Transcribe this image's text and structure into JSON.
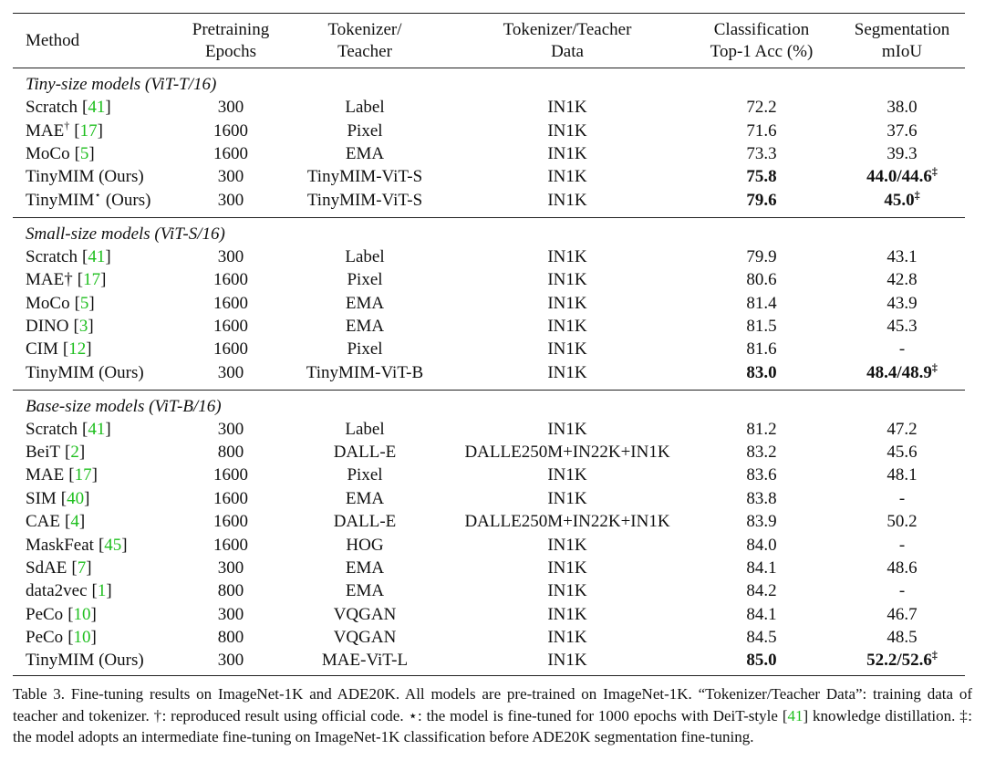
{
  "table": {
    "header": [
      [
        "Method"
      ],
      [
        "Pretraining",
        "Epochs"
      ],
      [
        "Tokenizer/",
        "Teacher"
      ],
      [
        "Tokenizer/Teacher",
        "Data"
      ],
      [
        "Classification",
        "Top-1 Acc (%)"
      ],
      [
        "Segmentation",
        "mIoU"
      ]
    ],
    "groups": [
      {
        "title": "Tiny-size models (ViT-T/16)",
        "rows": [
          {
            "method": "Scratch",
            "ref": "41",
            "epochs": "300",
            "tokenizer": "Label",
            "data": "IN1K",
            "acc": "72.2",
            "miou": "38.0"
          },
          {
            "method": "MAE",
            "method_sup": "†",
            "ref": "17",
            "epochs": "1600",
            "tokenizer": "Pixel",
            "data": "IN1K",
            "acc": "71.6",
            "miou": "37.6"
          },
          {
            "method": "MoCo",
            "ref": "5",
            "epochs": "1600",
            "tokenizer": "EMA",
            "data": "IN1K",
            "acc": "73.3",
            "miou": "39.3"
          },
          {
            "method": "TinyMIM (Ours)",
            "epochs": "300",
            "tokenizer": "TinyMIM-ViT-S",
            "data": "IN1K",
            "acc": "75.8",
            "miou": "44.0/44.6",
            "miou_sup": "‡",
            "bold": true
          },
          {
            "method": "TinyMIM",
            "method_sup": "⋆",
            "method_suffix": "(Ours)",
            "epochs": "300",
            "tokenizer": "TinyMIM-ViT-S",
            "data": "IN1K",
            "acc": "79.6",
            "miou": "45.0",
            "miou_sup": "‡",
            "bold": true
          }
        ]
      },
      {
        "title": "Small-size models (ViT-S/16)",
        "rows": [
          {
            "method": "Scratch",
            "ref": "41",
            "epochs": "300",
            "tokenizer": "Label",
            "data": "IN1K",
            "acc": "79.9",
            "miou": "43.1"
          },
          {
            "method": "MAE†",
            "ref": "17",
            "epochs": "1600",
            "tokenizer": "Pixel",
            "data": "IN1K",
            "acc": "80.6",
            "miou": "42.8"
          },
          {
            "method": "MoCo",
            "ref": "5",
            "epochs": "1600",
            "tokenizer": "EMA",
            "data": "IN1K",
            "acc": "81.4",
            "miou": "43.9"
          },
          {
            "method": "DINO",
            "ref": "3",
            "epochs": "1600",
            "tokenizer": "EMA",
            "data": "IN1K",
            "acc": "81.5",
            "miou": "45.3"
          },
          {
            "method": "CIM",
            "ref": "12",
            "epochs": "1600",
            "tokenizer": "Pixel",
            "data": "IN1K",
            "acc": "81.6",
            "miou": "-"
          },
          {
            "method": "TinyMIM (Ours)",
            "epochs": "300",
            "tokenizer": "TinyMIM-ViT-B",
            "data": "IN1K",
            "acc": "83.0",
            "miou": "48.4/48.9",
            "miou_sup": "‡",
            "bold": true
          }
        ]
      },
      {
        "title": "Base-size models (ViT-B/16)",
        "rows": [
          {
            "method": "Scratch",
            "ref": "41",
            "epochs": "300",
            "tokenizer": "Label",
            "data": "IN1K",
            "acc": "81.2",
            "miou": "47.2"
          },
          {
            "method": "BeiT",
            "ref": "2",
            "epochs": "800",
            "tokenizer": "DALL-E",
            "data": "DALLE250M+IN22K+IN1K",
            "acc": "83.2",
            "miou": "45.6"
          },
          {
            "method": "MAE",
            "ref": "17",
            "epochs": "1600",
            "tokenizer": "Pixel",
            "data": "IN1K",
            "acc": "83.6",
            "miou": "48.1"
          },
          {
            "method": "SIM",
            "ref": "40",
            "epochs": "1600",
            "tokenizer": "EMA",
            "data": "IN1K",
            "acc": "83.8",
            "miou": "-"
          },
          {
            "method": "CAE",
            "ref": "4",
            "epochs": "1600",
            "tokenizer": "DALL-E",
            "data": "DALLE250M+IN22K+IN1K",
            "acc": "83.9",
            "miou": "50.2"
          },
          {
            "method": "MaskFeat",
            "ref": "45",
            "epochs": "1600",
            "tokenizer": "HOG",
            "data": "IN1K",
            "acc": "84.0",
            "miou": "-"
          },
          {
            "method": "SdAE",
            "ref": "7",
            "epochs": "300",
            "tokenizer": "EMA",
            "data": "IN1K",
            "acc": "84.1",
            "miou": "48.6"
          },
          {
            "method": "data2vec",
            "ref": "1",
            "epochs": "800",
            "tokenizer": "EMA",
            "data": "IN1K",
            "acc": "84.2",
            "miou": "-"
          },
          {
            "method": "PeCo",
            "ref": "10",
            "epochs": "300",
            "tokenizer": "VQGAN",
            "data": "IN1K",
            "acc": "84.1",
            "miou": "46.7"
          },
          {
            "method": "PeCo",
            "ref": "10",
            "epochs": "800",
            "tokenizer": "VQGAN",
            "data": "IN1K",
            "acc": "84.5",
            "miou": "48.5"
          },
          {
            "method": "TinyMIM (Ours)",
            "epochs": "300",
            "tokenizer": "MAE-ViT-L",
            "data": "IN1K",
            "acc": "85.0",
            "miou": "52.2/52.6",
            "miou_sup": "‡",
            "bold": true
          }
        ]
      }
    ]
  },
  "caption": [
    "Table 3. Fine-tuning results on ImageNet-1K and ADE20K. All models are pre-trained on ImageNet-1K. “Tokenizer/Teacher Data”: training data of teacher and tokenizer. †: reproduced result using official code. ⋆: the model is fine-tuned for 1000 epochs with DeiT-style",
    "41",
    "knowledge distillation. ‡: the model adopts an intermediate fine-tuning on ImageNet-1K classification before ADE20K segmentation fine-tuning."
  ]
}
